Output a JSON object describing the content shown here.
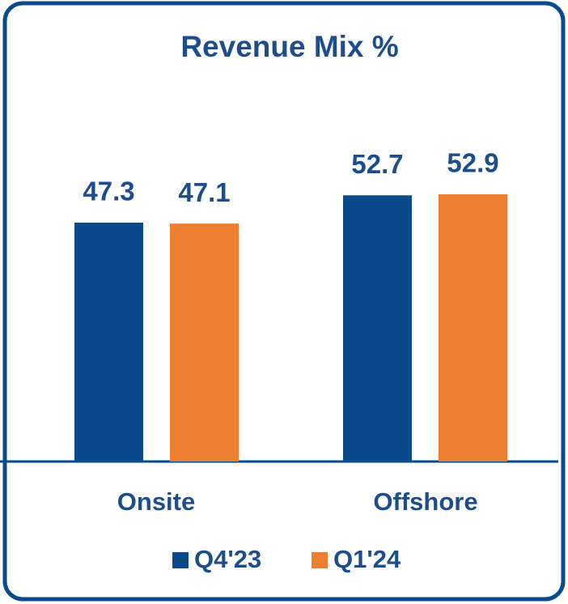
{
  "chart_data": {
    "type": "bar",
    "title": "Revenue Mix %",
    "categories": [
      "Onsite",
      "Offshore"
    ],
    "series": [
      {
        "name": "Q4'23",
        "color": "#0b4a8a",
        "values": [
          47.3,
          52.7
        ]
      },
      {
        "name": "Q1'24",
        "color": "#ed7d31",
        "values": [
          47.1,
          52.9
        ]
      }
    ],
    "legend": "bottom"
  }
}
